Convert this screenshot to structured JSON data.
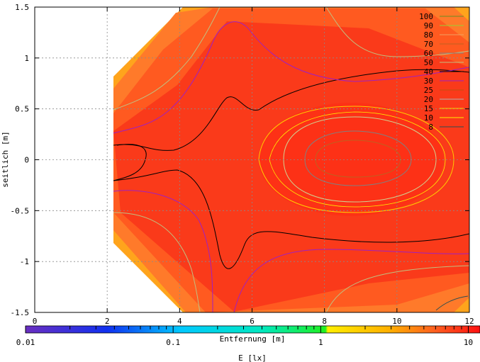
{
  "chart_data": {
    "type": "heatmap",
    "title": "",
    "xlabel": "Entfernung [m]",
    "ylabel": "seitlich [m]",
    "xlim": [
      0,
      12
    ],
    "ylim": [
      -1.5,
      1.5
    ],
    "xticks": [
      "0",
      "2",
      "4",
      "6",
      "8",
      "10",
      "12"
    ],
    "yticks": [
      "1.5",
      "1",
      "0.5",
      "0",
      "-0.5",
      "-1",
      "-1.5"
    ],
    "grid": true,
    "legend_placement": "top-right",
    "contour_levels": [
      "100",
      "90",
      "80",
      "70",
      "60",
      "50",
      "40",
      "30",
      "25",
      "20",
      "15",
      "10",
      "8"
    ],
    "contour_colors": [
      "#6b8e23",
      "#9acd32",
      "#f0a060",
      "#c06020",
      "#808080",
      "#c0c080",
      "#000000",
      "#a020c0",
      "#c05010",
      "#b0b0b0",
      "#ffcc00",
      "#ffee00",
      "#2f4f4f"
    ],
    "colorbar": {
      "label": "E [lx]",
      "scale": "log",
      "range": [
        0.01,
        12
      ],
      "tick_labels": [
        "0.01",
        "0.1",
        "1",
        "10"
      ],
      "tick_values": [
        0.01,
        0.1,
        1,
        10
      ]
    },
    "peak_region": {
      "x": 9.5,
      "y": 0.0,
      "value": 100
    },
    "background_level": 40
  }
}
